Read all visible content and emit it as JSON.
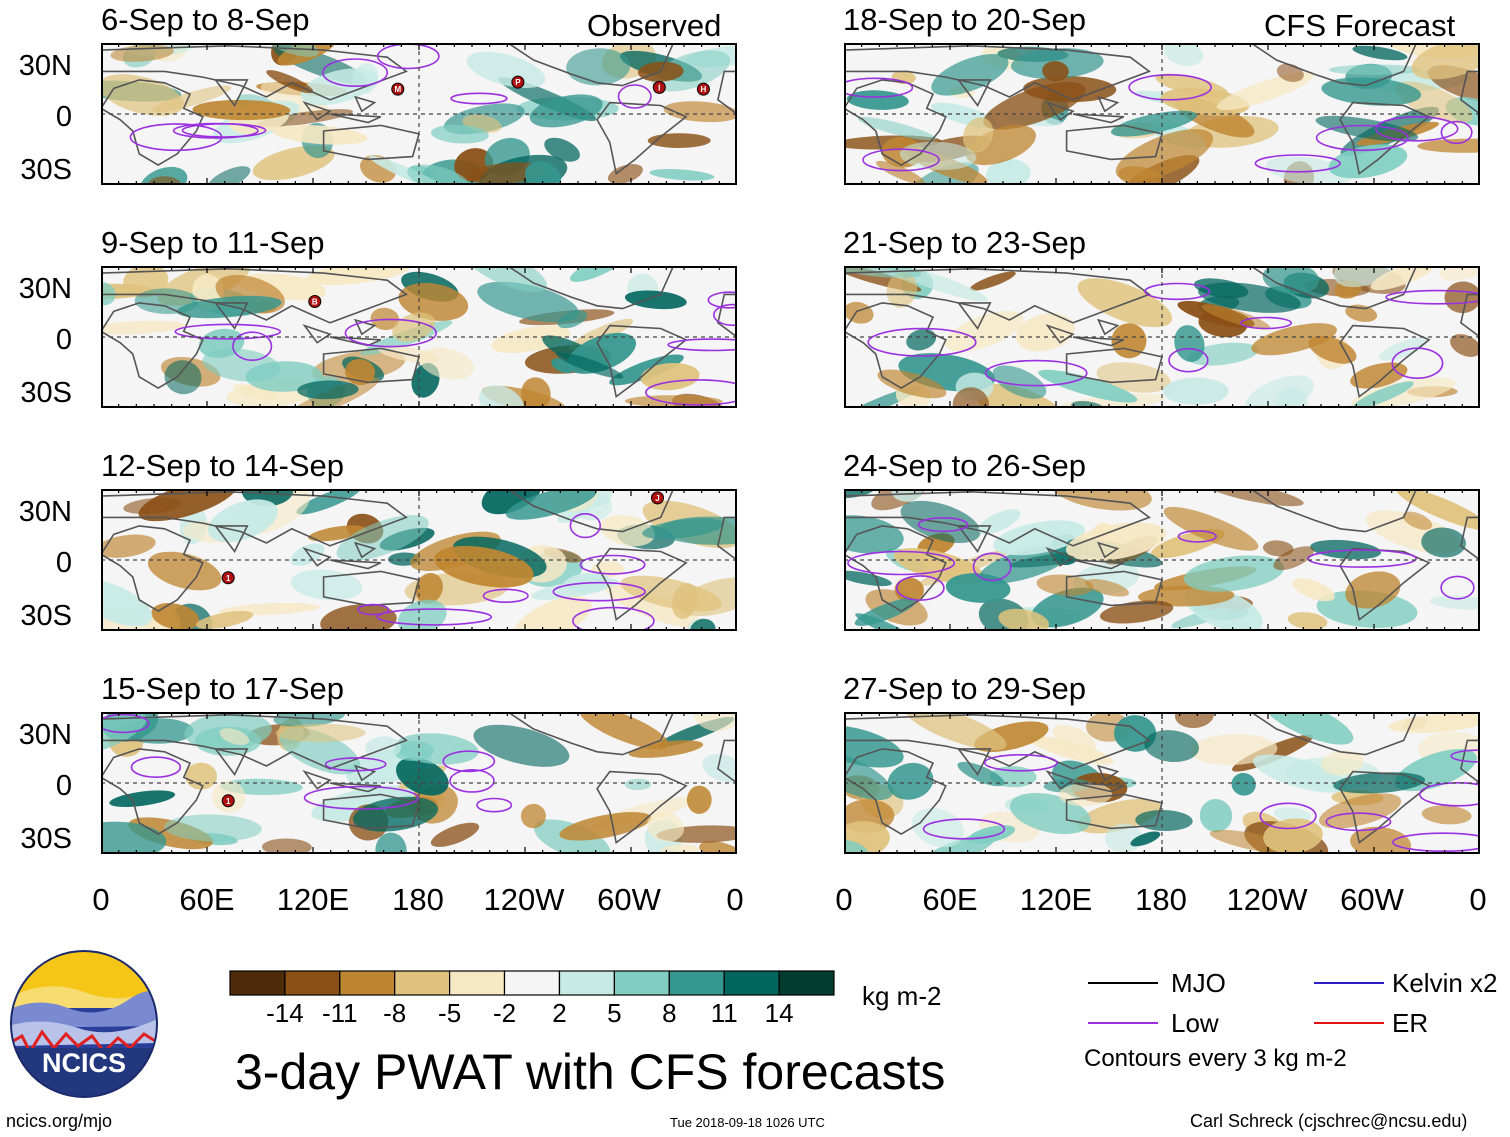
{
  "header": {
    "left_label": "Observed",
    "right_label": "CFS Forecast"
  },
  "panels_left": [
    {
      "title": "6-Sep to 8-Sep"
    },
    {
      "title": "9-Sep to 11-Sep"
    },
    {
      "title": "12-Sep to 14-Sep"
    },
    {
      "title": "15-Sep to 17-Sep"
    }
  ],
  "panels_right": [
    {
      "title": "18-Sep to 20-Sep"
    },
    {
      "title": "21-Sep to 23-Sep"
    },
    {
      "title": "24-Sep to 26-Sep"
    },
    {
      "title": "27-Sep to 29-Sep"
    }
  ],
  "yaxis": {
    "north": "30N",
    "eq": "0",
    "south": "30S"
  },
  "xaxis": [
    "0",
    "60E",
    "120E",
    "180",
    "120W",
    "60W",
    "0"
  ],
  "storm_markers": [
    {
      "panel": 0,
      "letter": "M",
      "lon": 168,
      "lat": 14
    },
    {
      "panel": 0,
      "letter": "P",
      "lon": 236,
      "lat": 18
    },
    {
      "panel": 0,
      "letter": "I",
      "lon": 316,
      "lat": 15
    },
    {
      "panel": 0,
      "letter": "H",
      "lon": 341,
      "lat": 14
    },
    {
      "panel": 1,
      "letter": "B",
      "lon": 121,
      "lat": 20
    },
    {
      "panel": 2,
      "letter": "J",
      "lon": 315,
      "lat": 35
    },
    {
      "panel": 2,
      "letter": "1",
      "lon": 72,
      "lat": -10
    },
    {
      "panel": 3,
      "letter": "1",
      "lon": 72,
      "lat": -10
    }
  ],
  "colorbar": {
    "colors": [
      "#4e2c09",
      "#8a5016",
      "#bf8632",
      "#dfc27d",
      "#f6e8c3",
      "#f5f5f5",
      "#c7eae5",
      "#80cdc1",
      "#35978f",
      "#01665e",
      "#003c30"
    ],
    "ticks": [
      "-14",
      "-11",
      "-8",
      "-5",
      "-2",
      "2",
      "5",
      "8",
      "11",
      "14"
    ],
    "units": "kg m-2"
  },
  "legend": {
    "items": [
      {
        "label": "MJO",
        "color": "#000000"
      },
      {
        "label": "Kelvin x2",
        "color": "#2b1ec8"
      },
      {
        "label": "Low",
        "color": "#9b30e0"
      },
      {
        "label": "ER",
        "color": "#e01010"
      }
    ],
    "note": "Contours every 3 kg m-2"
  },
  "title": "3-day PWAT with CFS forecasts",
  "footer": {
    "url": "ncics.org/mjo",
    "timestamp": "Tue 2018-09-18 1026 UTC",
    "credit": "Carl Schreck (cjschrec@ncsu.edu)"
  },
  "logo": {
    "text": "NCICS"
  }
}
